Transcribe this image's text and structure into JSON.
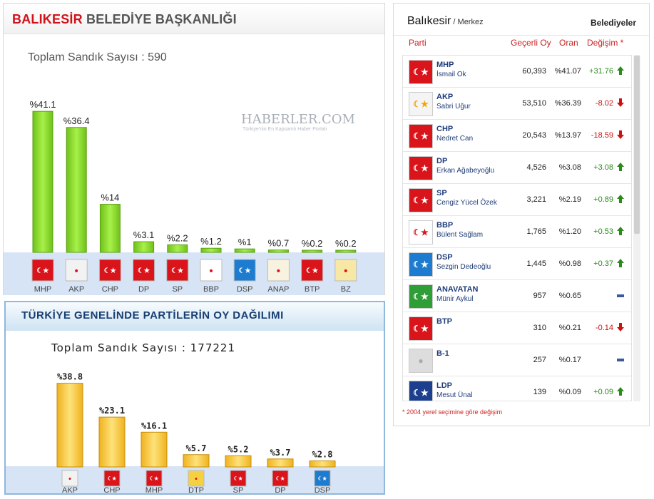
{
  "panel_a": {
    "title_red": "BALIKESİR",
    "title_rest": " BELEDİYE BAŞKANLIĞI",
    "count_label": "Toplam Sandık Sayısı : 590",
    "watermark": "HABERLER.COM",
    "watermark_tagline": "Türkiye'nin En Kapsamlı Haber Portalı"
  },
  "panel_b": {
    "title": "TÜRKİYE GENELİNDE PARTİLERİN OY DAĞILIMI",
    "count_label": "Toplam Sandık Sayısı : 177221"
  },
  "chart_data": [
    {
      "type": "bar",
      "title": "BALIKESİR BELEDİYE BAŞKANLIĞI",
      "categories": [
        "MHP",
        "AKP",
        "CHP",
        "DP",
        "SP",
        "BBP",
        "DSP",
        "ANAP",
        "BTP",
        "BZ"
      ],
      "values": [
        41.1,
        36.4,
        14,
        3.1,
        2.2,
        1.2,
        1,
        0.7,
        0.2,
        0.2
      ],
      "value_labels": [
        "%41.1",
        "%36.4",
        "%14",
        "%3.1",
        "%2.2",
        "%1.2",
        "%1",
        "%0.7",
        "%0.2",
        "%0.2"
      ],
      "ylim": [
        0,
        43
      ],
      "bar_color": "#8fe02a",
      "grid": false
    },
    {
      "type": "bar",
      "title": "TÜRKİYE GENELİNDE PARTİLERİN OY DAĞILIMI",
      "categories": [
        "AKP",
        "CHP",
        "MHP",
        "DTP",
        "SP",
        "DP",
        "DSP"
      ],
      "values": [
        38.8,
        23.1,
        16.1,
        5.7,
        5.2,
        3.7,
        2.8
      ],
      "value_labels": [
        "%38.8",
        "%23.1",
        "%16.1",
        "%5.7",
        "%5.2",
        "%3.7",
        "%2.8"
      ],
      "ylim": [
        0,
        40
      ],
      "bar_color": "#f7c93a",
      "grid": false
    }
  ],
  "panel_c": {
    "location": "Balıkesir",
    "location_sub": " / Merkez",
    "tab": "Belediyeler",
    "headers": {
      "party": "Parti",
      "votes": "Geçerli Oy",
      "ratio": "Oran",
      "change": "Değişim *"
    },
    "rows": [
      {
        "party": "MHP",
        "candidate": "İsmail Ok",
        "votes": "60,393",
        "ratio": "%41.07",
        "change": "+31.76",
        "dir": "up",
        "logo_bg": "#d9141a",
        "logo_fg": "#ffffff"
      },
      {
        "party": "AKP",
        "candidate": "Sabri Uğur",
        "votes": "53,510",
        "ratio": "%36.39",
        "change": "-8.02",
        "dir": "down",
        "logo_bg": "#f4f4f4",
        "logo_fg": "#f2a400"
      },
      {
        "party": "CHP",
        "candidate": "Nedret Can",
        "votes": "20,543",
        "ratio": "%13.97",
        "change": "-18.59",
        "dir": "down",
        "logo_bg": "#d9141a",
        "logo_fg": "#ffffff"
      },
      {
        "party": "DP",
        "candidate": "Erkan Ağabeyoğlu",
        "votes": "4,526",
        "ratio": "%3.08",
        "change": "+3.08",
        "dir": "up",
        "logo_bg": "#d9141a",
        "logo_fg": "#ffffff"
      },
      {
        "party": "SP",
        "candidate": "Cengiz Yücel Özek",
        "votes": "3,221",
        "ratio": "%2.19",
        "change": "+0.89",
        "dir": "up",
        "logo_bg": "#d9141a",
        "logo_fg": "#ffffff"
      },
      {
        "party": "BBP",
        "candidate": "Bülent Sağlam",
        "votes": "1,765",
        "ratio": "%1.20",
        "change": "+0.53",
        "dir": "up",
        "logo_bg": "#ffffff",
        "logo_fg": "#d9141a"
      },
      {
        "party": "DSP",
        "candidate": "Sezgin Dedeoğlu",
        "votes": "1,445",
        "ratio": "%0.98",
        "change": "+0.37",
        "dir": "up",
        "logo_bg": "#1d7ccf",
        "logo_fg": "#ffffff"
      },
      {
        "party": "ANAVATAN",
        "candidate": "Münir Aykul",
        "votes": "957",
        "ratio": "%0.65",
        "change": "",
        "dir": "none",
        "logo_bg": "#2f9e36",
        "logo_fg": "#ffffff"
      },
      {
        "party": "BTP",
        "candidate": "",
        "votes": "310",
        "ratio": "%0.21",
        "change": "-0.14",
        "dir": "down",
        "logo_bg": "#d9141a",
        "logo_fg": "#ffffff"
      },
      {
        "party": "B-1",
        "candidate": "",
        "votes": "257",
        "ratio": "%0.17",
        "change": "",
        "dir": "none",
        "logo_bg": "#dddddd",
        "logo_fg": "#aaaaaa"
      },
      {
        "party": "LDP",
        "candidate": "Mesut Ünal",
        "votes": "139",
        "ratio": "%0.09",
        "change": "+0.09",
        "dir": "up",
        "logo_bg": "#1c3f8e",
        "logo_fg": "#ffffff"
      }
    ],
    "footnote": "* 2004 yerel seçimine göre değişim"
  },
  "logo_colors": {
    "MHP": "#d9141a",
    "AKP": "#f2f2f2",
    "CHP": "#d9141a",
    "DP": "#d9141a",
    "SP": "#d9141a",
    "BBP": "#ffffff",
    "DSP": "#1d7ccf",
    "ANAP": "#f8f3e0",
    "BTP": "#d9141a",
    "BZ": "#f7e8a6",
    "DTP": "#f5d142"
  },
  "up_color": "#2a8a1a",
  "down_color": "#cc1111"
}
